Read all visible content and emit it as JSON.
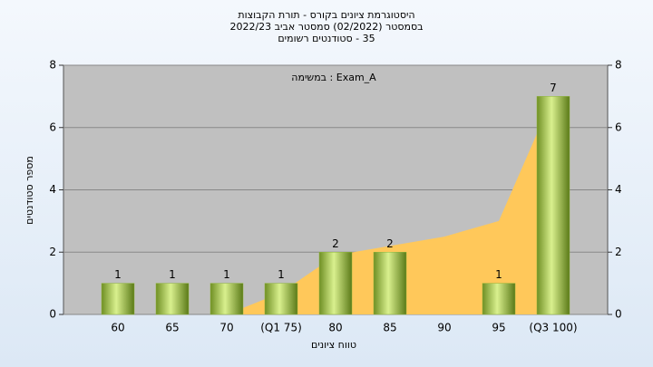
{
  "chart_data": {
    "type": "bar",
    "title": [
      "היסטוגרמת ציונים בקורס - תורת הקבוצות",
      "בסמסטר  (02/2022)  סמסטר אביב 2022/23",
      "35 - סטודנטים רשומים"
    ],
    "annotation": "Exam_A : במשימה",
    "x_label": "טווח ציונים",
    "y_label": "מספר סטודנטים",
    "categories": [
      "60",
      "65",
      "70",
      "(Q1 75)",
      "80",
      "85",
      "90",
      "95",
      "(Q3 100)"
    ],
    "values": [
      1,
      1,
      1,
      1,
      2,
      2,
      0,
      1,
      7
    ],
    "color": "#8db33a",
    "area": {
      "color": "#ffc85a",
      "values": [
        null,
        null,
        0,
        0.7,
        1.9,
        2.2,
        2.5,
        3,
        7
      ]
    },
    "ylim": [
      0,
      8
    ],
    "yticks": [
      0,
      2,
      4,
      6,
      8
    ],
    "y2lim": [
      0,
      8
    ],
    "y2ticks": [
      0,
      2,
      4,
      6,
      8
    ],
    "grid": true
  }
}
